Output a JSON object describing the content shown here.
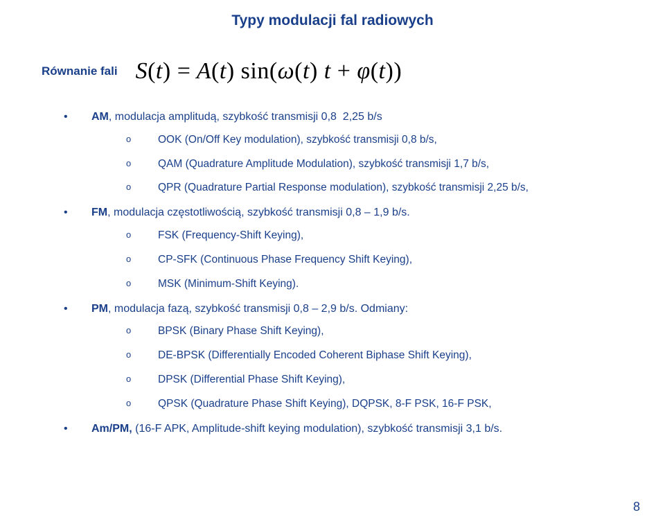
{
  "colors": {
    "text": "#1a3f8a",
    "equation": "#000000",
    "background": "#ffffff"
  },
  "pageNumber": "8",
  "title": "Typy modulacji fal radiowych",
  "equation": {
    "label": "Równanie fali",
    "expr_html": "S<span class='upright'>(</span>t<span class='upright'>)</span> <span class='upright'>=</span> A<span class='upright'>(</span>t<span class='upright'>)</span> <span class='upright'>sin(</span>&omega;<span class='upright'>(</span>t<span class='upright'>)</span> t <span class='upright'>+</span> &phi;<span class='upright'>(</span>t<span class='upright'>))</span>"
  },
  "items": [
    {
      "text_html": "<span class='b'>AM</span>, modulacja amplitudą, szybkość transmisji 0,8 &nbsp;2,25 b/s",
      "sub": [
        {
          "text": "OOK (On/Off Key modulation), szybkość transmisji 0,8  b/s,"
        },
        {
          "text": "QAM (Quadrature Amplitude Modulation), szybkość transmisji 1,7 b/s,"
        },
        {
          "text": "QPR (Quadrature Partial Response modulation), szybkość transmisji  2,25 b/s,"
        }
      ]
    },
    {
      "text_html": "<span class='b'>FM</span>, modulacja częstotliwością, szybkość transmisji 0,8 – 1,9 b/s.",
      "sub": [
        {
          "text": "FSK (Frequency-Shift Keying),"
        },
        {
          "text": "CP-SFK (Continuous Phase Frequency Shift Keying),"
        },
        {
          "text": "MSK (Minimum-Shift Keying)."
        }
      ]
    },
    {
      "text_html": "<span class='b'>PM</span>, modulacja fazą, szybkość transmisji 0,8 – 2,9 b/s. Odmiany:",
      "sub": [
        {
          "text": "BPSK (Binary Phase Shift Keying),"
        },
        {
          "text": "DE-BPSK (Differentially Encoded Coherent Biphase Shift Keying),"
        },
        {
          "text": "DPSK (Differential Phase Shift Keying),"
        },
        {
          "text": "QPSK (Quadrature Phase Shift Keying), DQPSK, 8-F PSK, 16-F PSK,"
        }
      ]
    },
    {
      "text_html": "<span class='b'>Am/PM,</span> (16-F APK, Amplitude-shift keying modulation), szybkość transmisji 3,1 b/s.",
      "sub": []
    }
  ]
}
